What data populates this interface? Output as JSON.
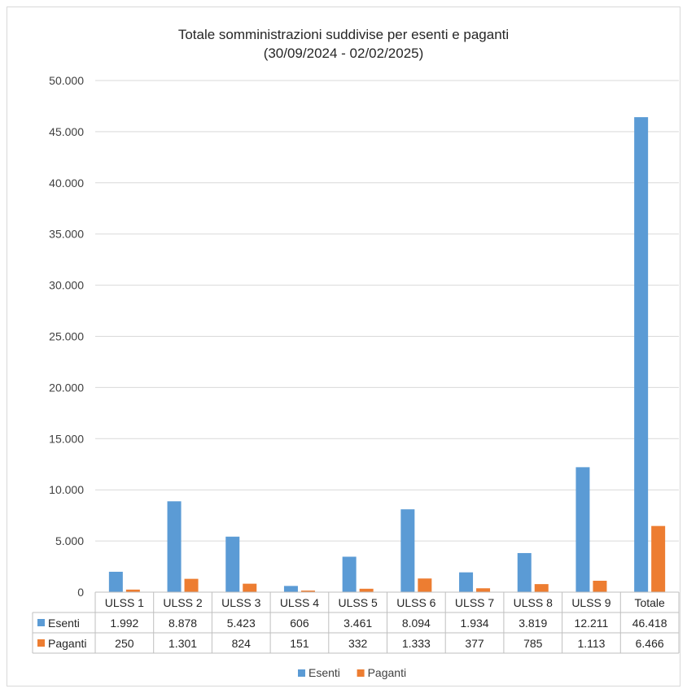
{
  "chart_data": {
    "type": "bar",
    "title": "Totale somministrazioni suddivise per esenti e paganti",
    "subtitle": "(30/09/2024 - 02/02/2025)",
    "categories": [
      "ULSS 1",
      "ULSS 2",
      "ULSS 3",
      "ULSS 4",
      "ULSS 5",
      "ULSS 6",
      "ULSS 7",
      "ULSS 8",
      "ULSS 9",
      "Totale"
    ],
    "series": [
      {
        "name": "Esenti",
        "color": "#5b9bd5",
        "values": [
          1992,
          8878,
          5423,
          606,
          3461,
          8094,
          1934,
          3819,
          12211,
          46418
        ],
        "labels": [
          "1.992",
          "8.878",
          "5.423",
          "606",
          "3.461",
          "8.094",
          "1.934",
          "3.819",
          "12.211",
          "46.418"
        ]
      },
      {
        "name": "Paganti",
        "color": "#ed7d31",
        "values": [
          250,
          1301,
          824,
          151,
          332,
          1333,
          377,
          785,
          1113,
          6466
        ],
        "labels": [
          "250",
          "1.301",
          "824",
          "151",
          "332",
          "1.333",
          "377",
          "785",
          "1.113",
          "6.466"
        ]
      }
    ],
    "ylim": [
      0,
      50000
    ],
    "yticks": [
      0,
      5000,
      10000,
      15000,
      20000,
      25000,
      30000,
      35000,
      40000,
      45000,
      50000
    ],
    "ytick_labels": [
      "0",
      "5.000",
      "10.000",
      "15.000",
      "20.000",
      "25.000",
      "30.000",
      "35.000",
      "40.000",
      "45.000",
      "50.000"
    ],
    "grid": true,
    "data_table": true,
    "legend": "bottom",
    "xlabel": "",
    "ylabel": ""
  }
}
